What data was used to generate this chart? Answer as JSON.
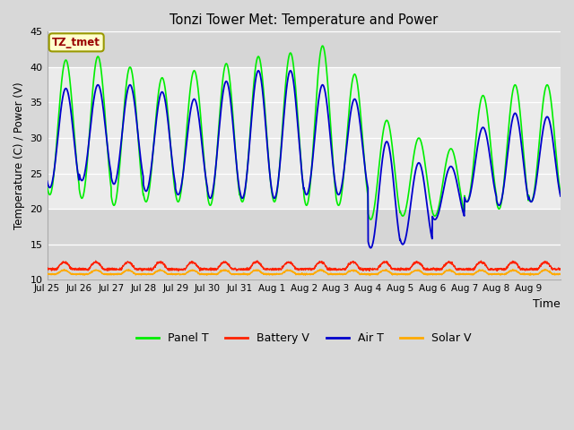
{
  "title": "Tonzi Tower Met: Temperature and Power",
  "xlabel": "Time",
  "ylabel": "Temperature (C) / Power (V)",
  "ylim": [
    10,
    45
  ],
  "yticks": [
    10,
    15,
    20,
    25,
    30,
    35,
    40,
    45
  ],
  "annotation_text": "TZ_tmet",
  "annotation_color": "#990000",
  "annotation_bg": "#ffffcc",
  "annotation_border": "#999900",
  "outer_bg": "#d8d8d8",
  "inner_bg": "#f0f0f0",
  "grid_color": "white",
  "legend_entries": [
    "Panel T",
    "Battery V",
    "Air T",
    "Solar V"
  ],
  "legend_colors": [
    "#00ee00",
    "#ff2200",
    "#0000cc",
    "#ffaa00"
  ],
  "x_tick_labels": [
    "Jul 25",
    "Jul 26",
    "Jul 27",
    "Jul 28",
    "Jul 29",
    "Jul 30",
    "Jul 31",
    "Aug 1",
    "Aug 2",
    "Aug 3",
    "Aug 4",
    "Aug 5",
    "Aug 6",
    "Aug 7",
    "Aug 8",
    "Aug 9"
  ],
  "panel_peaks": [
    41,
    41.5,
    40,
    38.5,
    39.5,
    40.5,
    41.5,
    42,
    43,
    39,
    32.5,
    30,
    28.5,
    36,
    37.5,
    37.5
  ],
  "panel_troughs": [
    22,
    21.5,
    20.5,
    21,
    21,
    20.5,
    21,
    21,
    20.5,
    20.5,
    18.5,
    19,
    19,
    21,
    20,
    21
  ],
  "air_peaks": [
    37,
    37.5,
    37.5,
    36.5,
    35.5,
    38,
    39.5,
    39.5,
    37.5,
    35.5,
    29.5,
    26.5,
    26,
    31.5,
    33.5,
    33
  ],
  "air_troughs": [
    23,
    24,
    23.5,
    22.5,
    22,
    21.5,
    21.5,
    21.5,
    22,
    22,
    14.5,
    15,
    18.5,
    21,
    20.5,
    21
  ],
  "batt_base": 11.5,
  "batt_amp": 1.0,
  "solar_base": 10.8,
  "solar_amp": 0.8
}
